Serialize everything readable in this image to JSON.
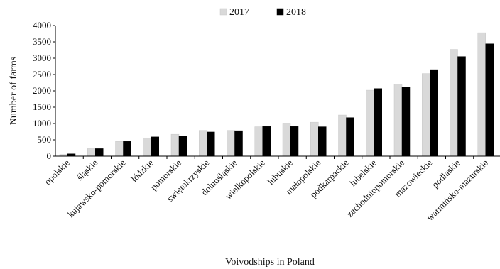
{
  "chart_data": {
    "type": "bar",
    "title": "",
    "xlabel": "Voivodships in Poland",
    "ylabel": "Number of farms",
    "ylim": [
      0,
      4000
    ],
    "yticks": [
      0,
      500,
      1000,
      1500,
      2000,
      2500,
      3000,
      3500,
      4000
    ],
    "grid": false,
    "legend_position": "top-center",
    "categories": [
      "opolskie",
      "śląskie",
      "kujawsko-pomorskie",
      "łódzkie",
      "pomorskie",
      "świętokrzyskie",
      "dolnośląskie",
      "wielkopolskie",
      "lubuskie",
      "małopolskie",
      "podkarpackie",
      "lubelskie",
      "zachodniopomorskie",
      "mazowieckie",
      "podlaskie",
      "warmińsko-mazurskie"
    ],
    "series": [
      {
        "name": "2017",
        "color": "#d9d9d9",
        "values": [
          50,
          230,
          450,
          560,
          670,
          790,
          790,
          900,
          990,
          1040,
          1260,
          2020,
          2210,
          2530,
          3270,
          3780
        ]
      },
      {
        "name": "2018",
        "color": "#000000",
        "values": [
          70,
          230,
          450,
          590,
          620,
          740,
          780,
          910,
          910,
          900,
          1180,
          2070,
          2120,
          2650,
          3050,
          3440
        ]
      }
    ]
  }
}
